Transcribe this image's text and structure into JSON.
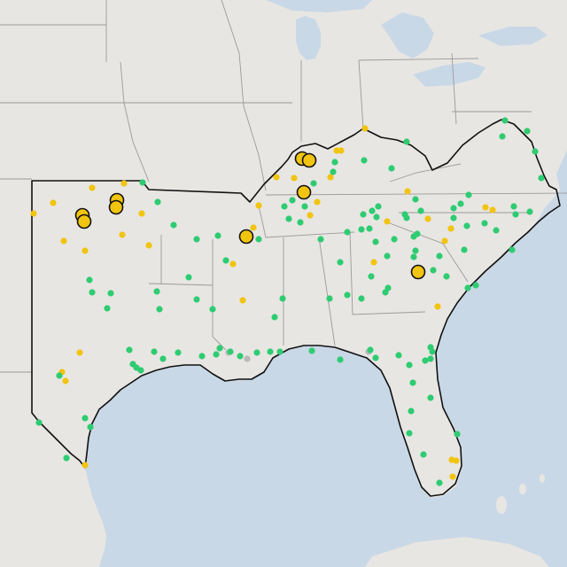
{
  "colors": {
    "water": "#c9d8e6",
    "land": "#e8e6e3",
    "state_border": "#9a9a9a",
    "region_outline": "#111111",
    "marker_green": "#2ecc71",
    "marker_yellow": "#f1c40f",
    "marker_gray": "#b8b8b8",
    "marker_stroke": "#111111"
  },
  "legend": [],
  "markers": {
    "large_yellow": [
      [
        93,
        243
      ],
      [
        95,
        250
      ],
      [
        132,
        226
      ],
      [
        131,
        234
      ],
      [
        341,
        179
      ],
      [
        349,
        181
      ],
      [
        343,
        217
      ],
      [
        278,
        267
      ],
      [
        472,
        307
      ]
    ],
    "small_yellow": [
      [
        60,
        229
      ],
      [
        38,
        241
      ],
      [
        72,
        272
      ],
      [
        96,
        283
      ],
      [
        104,
        212
      ],
      [
        140,
        207
      ],
      [
        138,
        265
      ],
      [
        160,
        241
      ],
      [
        168,
        277
      ],
      [
        312,
        200
      ],
      [
        292,
        232
      ],
      [
        286,
        257
      ],
      [
        263,
        298
      ],
      [
        274,
        339
      ],
      [
        332,
        201
      ],
      [
        350,
        243
      ],
      [
        358,
        228
      ],
      [
        373,
        200
      ],
      [
        380,
        170
      ],
      [
        385,
        170
      ],
      [
        412,
        145
      ],
      [
        437,
        250
      ],
      [
        422,
        296
      ],
      [
        460,
        216
      ],
      [
        483,
        247
      ],
      [
        548,
        234
      ],
      [
        556,
        237
      ],
      [
        595,
        148
      ],
      [
        509,
        258
      ],
      [
        502,
        272
      ],
      [
        494,
        346
      ],
      [
        90,
        398
      ],
      [
        70,
        420
      ],
      [
        74,
        430
      ],
      [
        96,
        525
      ],
      [
        515,
        520
      ],
      [
        511,
        538
      ],
      [
        510,
        519
      ]
    ],
    "green": [
      [
        161,
        206
      ],
      [
        178,
        228
      ],
      [
        196,
        254
      ],
      [
        222,
        270
      ],
      [
        213,
        313
      ],
      [
        246,
        266
      ],
      [
        292,
        270
      ],
      [
        255,
        294
      ],
      [
        240,
        349
      ],
      [
        222,
        338
      ],
      [
        177,
        329
      ],
      [
        180,
        349
      ],
      [
        121,
        348
      ],
      [
        125,
        331
      ],
      [
        104,
        330
      ],
      [
        101,
        316
      ],
      [
        174,
        397
      ],
      [
        184,
        405
      ],
      [
        201,
        398
      ],
      [
        228,
        402
      ],
      [
        244,
        400
      ],
      [
        248,
        393
      ],
      [
        260,
        397
      ],
      [
        271,
        402
      ],
      [
        290,
        398
      ],
      [
        305,
        397
      ],
      [
        316,
        397
      ],
      [
        352,
        396
      ],
      [
        384,
        406
      ],
      [
        418,
        395
      ],
      [
        424,
        404
      ],
      [
        450,
        401
      ],
      [
        462,
        412
      ],
      [
        480,
        407
      ],
      [
        486,
        392
      ],
      [
        488,
        397
      ],
      [
        486,
        405
      ],
      [
        466,
        432
      ],
      [
        464,
        464
      ],
      [
        486,
        449
      ],
      [
        462,
        489
      ],
      [
        478,
        513
      ],
      [
        496,
        545
      ],
      [
        516,
        490
      ],
      [
        150,
        411
      ],
      [
        154,
        415
      ],
      [
        159,
        418
      ],
      [
        146,
        395
      ],
      [
        67,
        424
      ],
      [
        96,
        472
      ],
      [
        102,
        482
      ],
      [
        75,
        517
      ],
      [
        44,
        477
      ],
      [
        570,
        136
      ],
      [
        595,
        148
      ],
      [
        611,
        201
      ],
      [
        604,
        171
      ],
      [
        567,
        154
      ],
      [
        529,
        220
      ],
      [
        520,
        230
      ],
      [
        512,
        235
      ],
      [
        512,
        246
      ],
      [
        527,
        255
      ],
      [
        547,
        252
      ],
      [
        560,
        260
      ],
      [
        582,
        242
      ],
      [
        580,
        233
      ],
      [
        598,
        239
      ],
      [
        578,
        282
      ],
      [
        524,
        282
      ],
      [
        504,
        312
      ],
      [
        496,
        289
      ],
      [
        489,
        305
      ],
      [
        467,
        290
      ],
      [
        438,
        325
      ],
      [
        435,
        330
      ],
      [
        437,
        289
      ],
      [
        459,
        246
      ],
      [
        467,
        267
      ],
      [
        469,
        283
      ],
      [
        445,
        270
      ],
      [
        424,
        273
      ],
      [
        410,
        242
      ],
      [
        420,
        238
      ],
      [
        427,
        233
      ],
      [
        425,
        245
      ],
      [
        392,
        262
      ],
      [
        384,
        296
      ],
      [
        362,
        270
      ],
      [
        339,
        251
      ],
      [
        326,
        247
      ],
      [
        344,
        233
      ],
      [
        330,
        226
      ],
      [
        321,
        233
      ],
      [
        354,
        207
      ],
      [
        376,
        194
      ],
      [
        378,
        183
      ],
      [
        411,
        181
      ],
      [
        442,
        190
      ],
      [
        459,
        160
      ],
      [
        419,
        312
      ],
      [
        408,
        337
      ],
      [
        392,
        333
      ],
      [
        372,
        337
      ],
      [
        319,
        337
      ],
      [
        310,
        358
      ],
      [
        528,
        325
      ],
      [
        537,
        322
      ],
      [
        475,
        238
      ],
      [
        457,
        242
      ],
      [
        471,
        264
      ],
      [
        417,
        258
      ],
      [
        408,
        259
      ],
      [
        469,
        225
      ]
    ],
    "gray": [
      [
        258,
        398
      ],
      [
        416,
        397
      ],
      [
        279,
        405
      ]
    ]
  }
}
